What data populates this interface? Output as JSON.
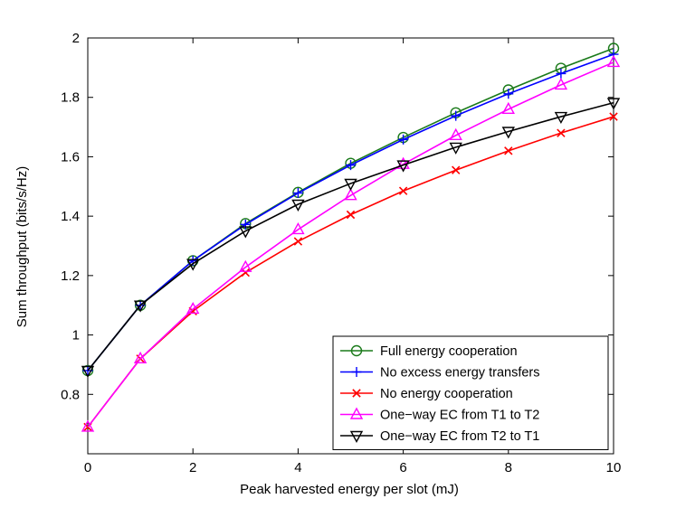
{
  "chart_data": {
    "type": "line",
    "xlabel": "Peak harvested energy per slot (mJ)",
    "ylabel": "Sum throughput (bits/s/Hz)",
    "xlim": [
      0,
      10
    ],
    "ylim": [
      0.6,
      2.0
    ],
    "xticks": [
      "0",
      "2",
      "4",
      "6",
      "8",
      "10"
    ],
    "yticks": [
      "0.8",
      "1",
      "1.2",
      "1.4",
      "1.6",
      "1.8",
      "2"
    ],
    "grid": false,
    "legend_position": "bottom-right",
    "x": [
      0,
      1,
      2,
      3,
      4,
      5,
      6,
      7,
      8,
      9,
      10
    ],
    "series": [
      {
        "name": "Full energy cooperation",
        "color": "#1a7a1a",
        "marker": "circle",
        "values": [
          0.88,
          1.1,
          1.25,
          1.375,
          1.48,
          1.578,
          1.665,
          1.748,
          1.825,
          1.898,
          1.965
        ]
      },
      {
        "name": "No excess energy transfers",
        "color": "#0000ff",
        "marker": "plus",
        "values": [
          0.88,
          1.1,
          1.25,
          1.372,
          1.478,
          1.572,
          1.658,
          1.738,
          1.812,
          1.88,
          1.945
        ]
      },
      {
        "name": "No energy cooperation",
        "color": "#ff0000",
        "marker": "x",
        "values": [
          0.69,
          0.92,
          1.08,
          1.21,
          1.315,
          1.405,
          1.485,
          1.555,
          1.62,
          1.68,
          1.735
        ]
      },
      {
        "name": "One−way EC from T1 to T2",
        "color": "#ff00ff",
        "marker": "triangle-up",
        "values": [
          0.69,
          0.92,
          1.087,
          1.228,
          1.355,
          1.47,
          1.575,
          1.672,
          1.76,
          1.842,
          1.918
        ]
      },
      {
        "name": "One−way EC from T2 to T1",
        "color": "#000000",
        "marker": "triangle-down",
        "values": [
          0.88,
          1.1,
          1.24,
          1.35,
          1.44,
          1.51,
          1.572,
          1.632,
          1.685,
          1.735,
          1.782
        ]
      }
    ]
  }
}
